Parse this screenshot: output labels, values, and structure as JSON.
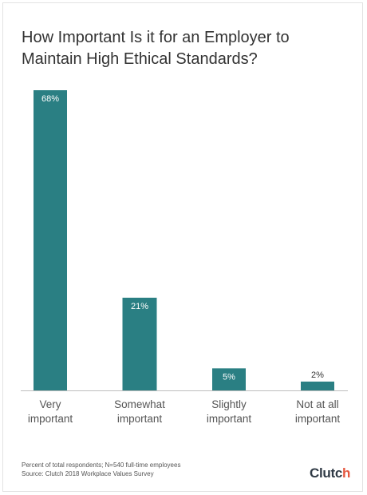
{
  "title": "How Important Is it for an Employer to Maintain High Ethical Standards?",
  "footer": {
    "note": "Percent of total respondents; N=540 full-time employees",
    "source": "Source: Clutch 2018 Workplace Values Survey"
  },
  "brand": {
    "name_main": "Clutc",
    "name_accent": "h",
    "accent_color": "#e5573f"
  },
  "chart_data": {
    "type": "bar",
    "categories": [
      [
        "Very",
        "important"
      ],
      [
        "Somewhat",
        "important"
      ],
      [
        "Slightly",
        "important"
      ],
      [
        "Not at all",
        "important"
      ]
    ],
    "values": [
      68,
      21,
      5,
      2
    ],
    "data_labels": [
      "68%",
      "21%",
      "5%",
      "2%"
    ],
    "ylim": [
      0,
      68
    ],
    "bar_color": "#2a7f83",
    "grid": false,
    "legend": false
  }
}
